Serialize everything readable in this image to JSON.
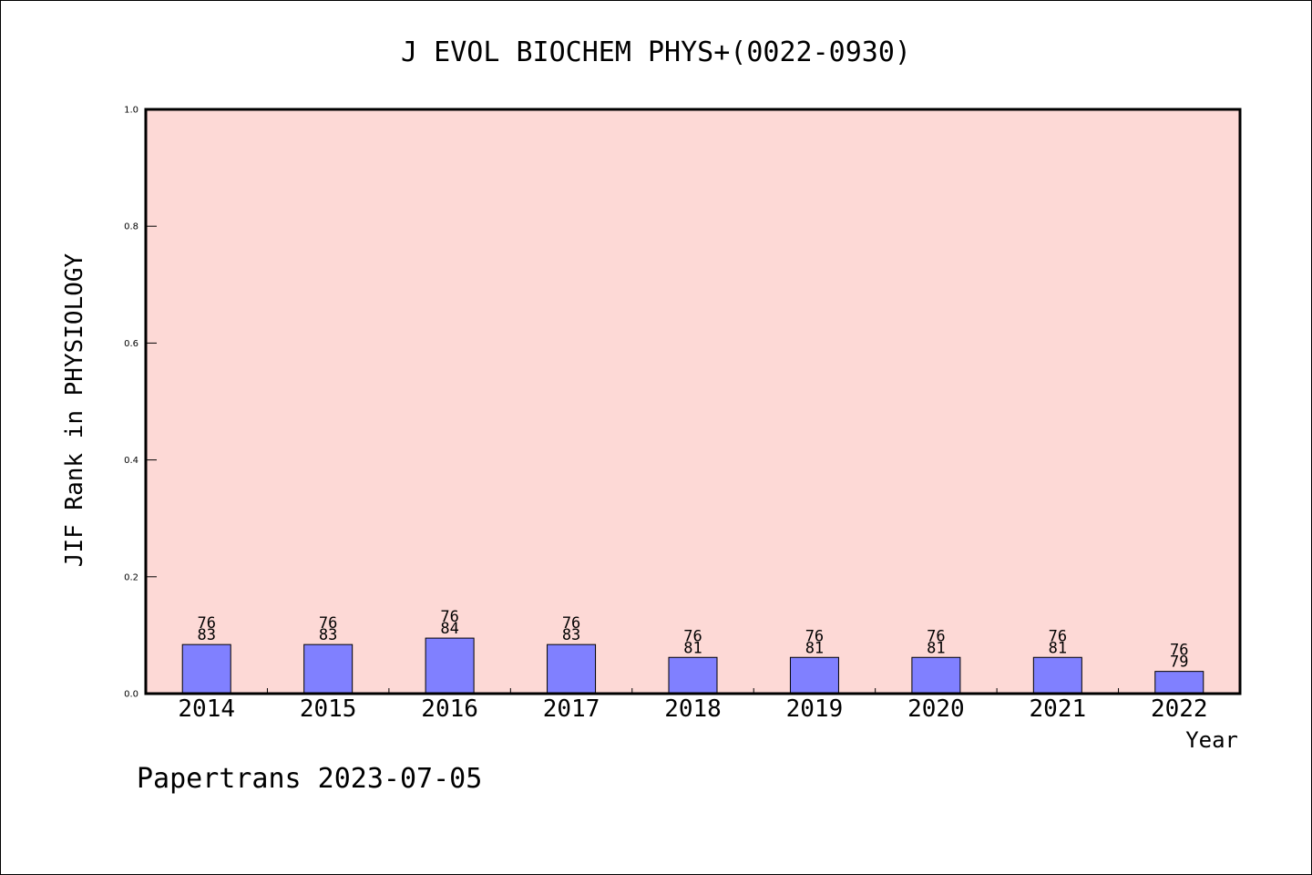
{
  "chart_data": {
    "type": "bar",
    "title": "J EVOL BIOCHEM PHYS+(0022-0930)",
    "xlabel": "Year",
    "ylabel": "JIF Rank in PHYSIOLOGY",
    "ylim": [
      0,
      1.0
    ],
    "yticks": [
      "0.0",
      "0.2",
      "0.4",
      "0.6",
      "0.8",
      "1.0"
    ],
    "categories": [
      "2014",
      "2015",
      "2016",
      "2017",
      "2018",
      "2019",
      "2020",
      "2021",
      "2022"
    ],
    "values": [
      0.084,
      0.084,
      0.095,
      0.084,
      0.062,
      0.062,
      0.062,
      0.062,
      0.038
    ],
    "label_top": [
      "76",
      "76",
      "76",
      "76",
      "76",
      "76",
      "76",
      "76",
      "76"
    ],
    "label_bottom": [
      "83",
      "83",
      "84",
      "83",
      "81",
      "81",
      "81",
      "81",
      "79"
    ],
    "grid": false,
    "colors": {
      "plot_background": "#fdd9d6",
      "bar": "#8080ff",
      "axis": "#000000"
    }
  },
  "footer": {
    "text": "Papertrans 2023-07-05"
  }
}
